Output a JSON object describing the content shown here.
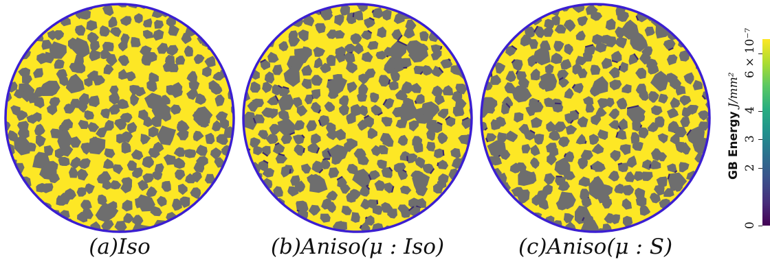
{
  "panels": [
    {
      "caption": "(a)Iso",
      "boundary_color": "#3b1fd1",
      "grain_color": "#6e6e6e",
      "gb_color": "#fde725",
      "low_gb_color": "#3b2a6e"
    },
    {
      "caption": "(b)Aniso(μ : Iso)",
      "boundary_color": "#3b1fd1",
      "grain_color": "#6e6e6e",
      "gb_color": "#fde725",
      "low_gb_color": "#3b2a6e"
    },
    {
      "caption": "(c)Aniso(μ : S)",
      "boundary_color": "#3b1fd1",
      "grain_color": "#6e6e6e",
      "gb_color": "#fde725",
      "low_gb_color": "#3b2a6e"
    }
  ],
  "colorbar": {
    "title": "GB Energy",
    "units": "J/mm²",
    "colormap": "viridis",
    "range": [
      0,
      6.5e-07
    ],
    "ticks": [
      {
        "value": 0,
        "label": "0"
      },
      {
        "value": 2e-07,
        "label": "2"
      },
      {
        "value": 3e-07,
        "label": "3"
      },
      {
        "value": 4e-07,
        "label": "4"
      },
      {
        "value": 6e-07,
        "label": "6 × 10⁻⁷"
      }
    ]
  }
}
